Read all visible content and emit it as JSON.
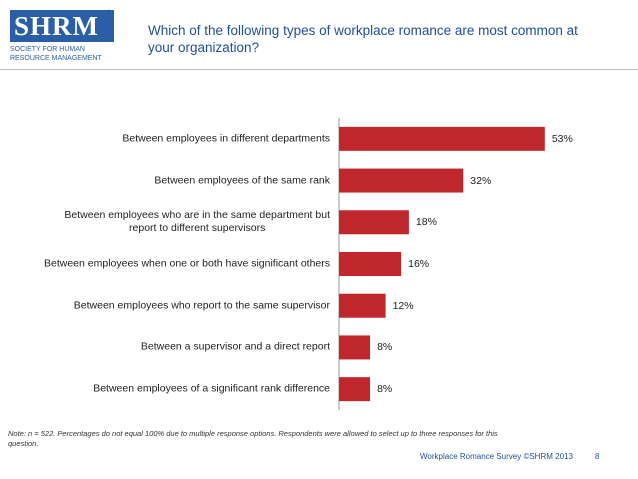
{
  "logo": {
    "name": "SHRM",
    "mark": "®",
    "tagline": [
      "SOCIETY FOR HUMAN",
      "RESOURCE MANAGEMENT"
    ]
  },
  "chart_data": {
    "type": "bar",
    "orientation": "horizontal",
    "title": "Which of the following types of workplace romance are most common at\nyour organization?",
    "categories": [
      "Between employees in different departments",
      "Between employees of the same rank",
      "Between employees who are in the same department but\nreport to different supervisors",
      "Between employees when one or both have significant others",
      "Between employees who report to the same supervisor",
      "Between a supervisor and  a direct report",
      "Between employees of a significant rank difference"
    ],
    "values": [
      53,
      32,
      18,
      16,
      12,
      8,
      8
    ],
    "value_labels": [
      "53%",
      "32%",
      "18%",
      "16%",
      "12%",
      "8%",
      "8%"
    ],
    "color": "#c0272d",
    "xlim": [
      0,
      60
    ]
  },
  "note": "Note: n = 522. Percentages do not equal 100% due to multiple response options. Respondents were allowed to select up to three responses for this\nquestion.",
  "footer": {
    "source": "Workplace Romance Survey ©SHRM 2013",
    "page": "8"
  }
}
